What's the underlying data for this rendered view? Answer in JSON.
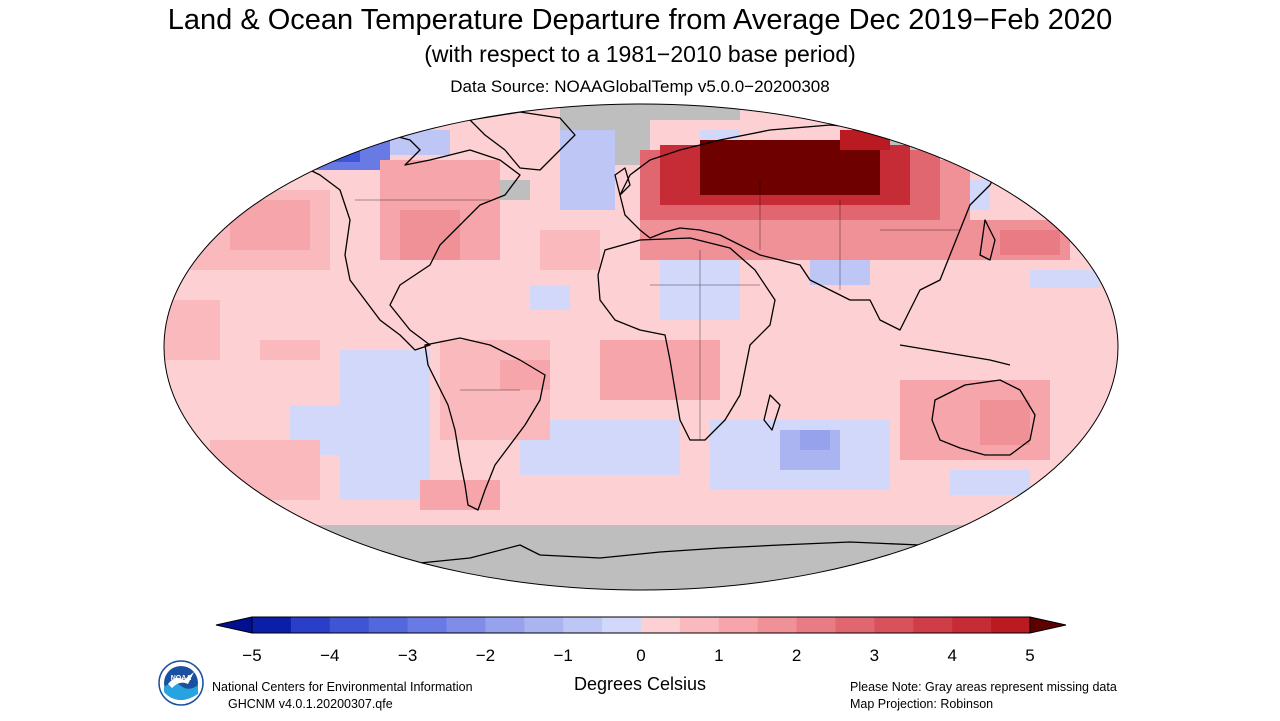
{
  "header": {
    "title": "Land & Ocean Temperature Departure from Average Dec 2019−Feb 2020",
    "subtitle": "(with respect to a 1981−2010 base period)",
    "source": "Data Source: NOAAGlobalTemp v5.0.0−20200308"
  },
  "map": {
    "projection": "Robinson",
    "missing_color": "#bebebe",
    "coastline_color": "#000000"
  },
  "colorbar": {
    "units": "Degrees Celsius",
    "tick_labels": [
      "−5",
      "−4",
      "−3",
      "−2",
      "−1",
      "0",
      "1",
      "2",
      "3",
      "4",
      "5"
    ],
    "tick_values": [
      -5,
      -4,
      -3,
      -2,
      -1,
      0,
      1,
      2,
      3,
      4,
      5
    ],
    "colors": [
      "#0b1ea8",
      "#2a3fc8",
      "#3f55d6",
      "#5468de",
      "#6a7ae4",
      "#7f8de8",
      "#96a2ec",
      "#aab4f0",
      "#bec6f5",
      "#d2d8fa",
      "#fdd0d3",
      "#fab9bd",
      "#f6a5aa",
      "#f09097",
      "#e87b83",
      "#e0666f",
      "#d8525c",
      "#cf3e48",
      "#c52c36",
      "#ba1a22"
    ],
    "under_color": "#001090",
    "over_color": "#5c0000"
  },
  "footer": {
    "org_line1": "National Centers for Environmental Information",
    "org_line2": "GHCNM v4.0.1.20200307.qfe",
    "note_line1": "Please Note: Gray areas represent missing data",
    "note_line2": "Map Projection: Robinson",
    "logo_icon": "noaa-logo-icon",
    "logo_text": "NOAA"
  }
}
